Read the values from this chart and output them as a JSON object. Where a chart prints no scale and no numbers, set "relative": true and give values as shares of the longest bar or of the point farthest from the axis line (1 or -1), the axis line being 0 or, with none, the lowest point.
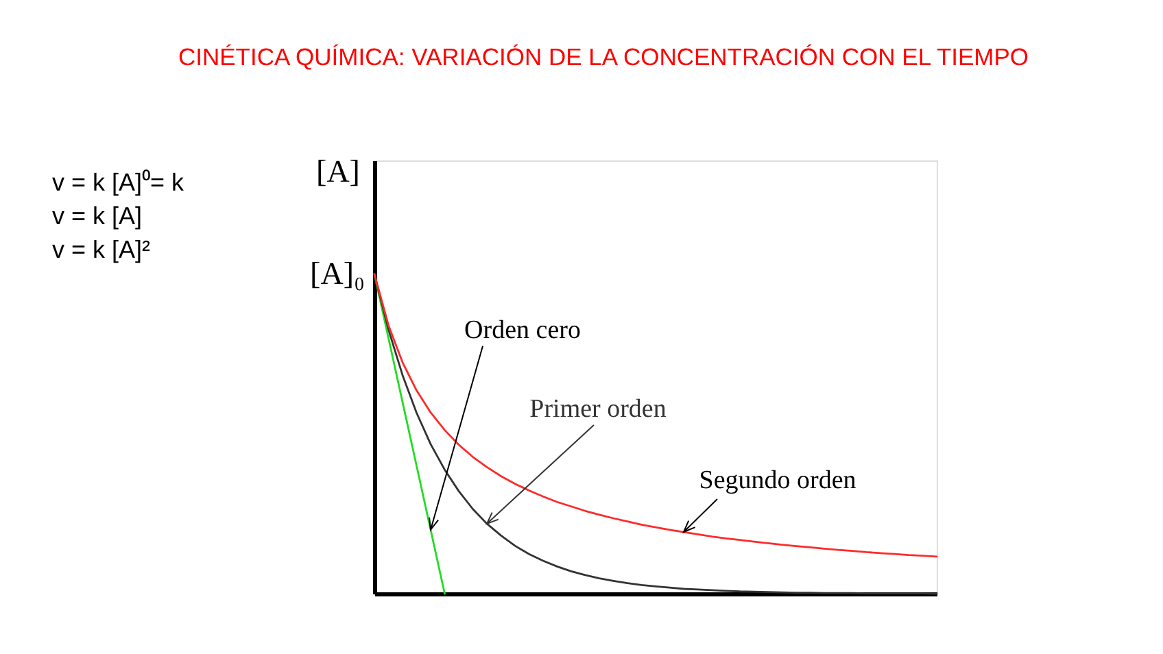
{
  "chart_data": {
    "type": "line",
    "title": "CINÉTICA QUÍMICA: VARIACIÓN DE LA CONCENTRACIÓN CON EL TIEMPO",
    "ylabel": "[A]",
    "relative": true,
    "categories": [
      null,
      null,
      null,
      null,
      null,
      null,
      null,
      null,
      null,
      null,
      null,
      null,
      null,
      null,
      null,
      null,
      null,
      null,
      null,
      null,
      null,
      null,
      null,
      null,
      null,
      null,
      null,
      null,
      null,
      null,
      null,
      null,
      null,
      null,
      null,
      null,
      null,
      null,
      null,
      null,
      null
    ],
    "series": [
      {
        "name": "Orden cero",
        "color": "#22dd22",
        "values": [
          1,
          0.8,
          0.6,
          0.4,
          0.2,
          0,
          null,
          null,
          null,
          null,
          null,
          null,
          null,
          null,
          null,
          null,
          null,
          null,
          null,
          null,
          null,
          null,
          null,
          null,
          null,
          null,
          null,
          null,
          null,
          null,
          null,
          null,
          null,
          null,
          null,
          null,
          null,
          null,
          null,
          null,
          null
        ]
      },
      {
        "name": "Primer orden",
        "color": "#333333",
        "values": [
          1,
          0.827,
          0.684,
          0.566,
          0.468,
          0.388,
          0.321,
          0.265,
          0.219,
          0.182,
          0.15,
          0.124,
          0.103,
          0.085,
          0.07,
          0.058,
          0.048,
          0.04,
          0.033,
          0.027,
          0.023,
          0.019,
          0.015,
          0.013,
          0.011,
          0.009,
          0.007,
          0.006,
          0.005,
          0.004,
          0.003,
          0.003,
          0.002,
          0.002,
          0.002,
          0.001,
          0.001,
          0.001,
          0.001,
          0.001,
          0
        ]
      },
      {
        "name": "Segundo orden",
        "color": "#ff2a2a",
        "values": [
          1,
          0.84,
          0.724,
          0.636,
          0.567,
          0.512,
          0.466,
          0.428,
          0.396,
          0.368,
          0.344,
          0.323,
          0.304,
          0.287,
          0.273,
          0.259,
          0.247,
          0.236,
          0.226,
          0.216,
          0.208,
          0.2,
          0.193,
          0.186,
          0.179,
          0.173,
          0.168,
          0.163,
          0.158,
          0.153,
          0.149,
          0.145,
          0.141,
          0.137,
          0.134,
          0.13,
          0.127,
          0.124,
          0.121,
          0.119,
          0.116
        ]
      }
    ],
    "annotations": [
      "v = k [A]⁰= k",
      "v = k [A]",
      "v = k [A]²",
      "[A]₀"
    ]
  }
}
